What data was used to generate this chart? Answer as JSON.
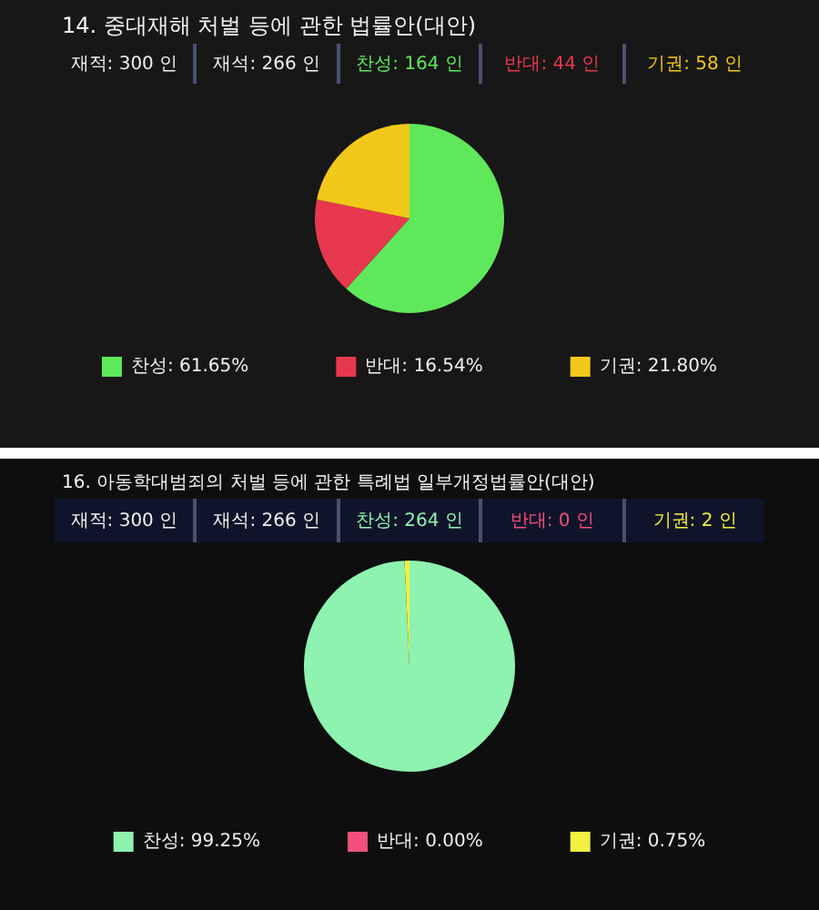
{
  "chart_data": [
    {
      "type": "pie",
      "title": "14. 중대재해 처벌 등에 관한 법률안(대안)",
      "annotations": [
        "재적: 300 인",
        "재석: 266 인",
        "찬성: 164 인",
        "반대: 44 인",
        "기권: 58 인"
      ],
      "categories": [
        "찬성: 61.65%",
        "반대: 16.54%",
        "기권: 21.80%"
      ],
      "values": [
        61.65,
        16.54,
        21.8
      ],
      "colors": [
        "#5fe85a",
        "#e8384f",
        "#f2c81a"
      ],
      "legend": "bottom"
    },
    {
      "type": "pie",
      "title": "16. 아동학대범죄의 처벌 등에 관한 특례법 일부개정법률안(대안)",
      "annotations": [
        "재적: 300 인",
        "재석: 266 인",
        "찬성: 264 인",
        "반대: 0 인",
        "기권: 2 인"
      ],
      "categories": [
        "찬성: 99.25%",
        "반대: 0.00%",
        "기권: 0.75%"
      ],
      "values": [
        99.25,
        0,
        0.75
      ],
      "colors": [
        "#8ef2b0",
        "#f0507a",
        "#f2f040"
      ],
      "legend": "bottom"
    }
  ]
}
